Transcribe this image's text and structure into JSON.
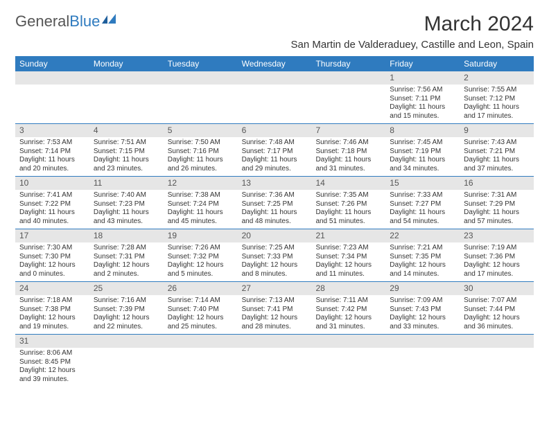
{
  "logo": {
    "general": "General",
    "blue": "Blue"
  },
  "title": "March 2024",
  "subtitle": "San Martin de Valderaduey, Castille and Leon, Spain",
  "colors": {
    "header_bg": "#2f7bbf",
    "header_text": "#ffffff",
    "daynum_bg": "#e6e6e6",
    "week_border": "#2f7bbf"
  },
  "weekdays": [
    "Sunday",
    "Monday",
    "Tuesday",
    "Wednesday",
    "Thursday",
    "Friday",
    "Saturday"
  ],
  "weeks": [
    [
      null,
      null,
      null,
      null,
      null,
      {
        "n": "1",
        "sunrise": "7:56 AM",
        "sunset": "7:11 PM",
        "daylight": "11 hours and 15 minutes."
      },
      {
        "n": "2",
        "sunrise": "7:55 AM",
        "sunset": "7:12 PM",
        "daylight": "11 hours and 17 minutes."
      }
    ],
    [
      {
        "n": "3",
        "sunrise": "7:53 AM",
        "sunset": "7:14 PM",
        "daylight": "11 hours and 20 minutes."
      },
      {
        "n": "4",
        "sunrise": "7:51 AM",
        "sunset": "7:15 PM",
        "daylight": "11 hours and 23 minutes."
      },
      {
        "n": "5",
        "sunrise": "7:50 AM",
        "sunset": "7:16 PM",
        "daylight": "11 hours and 26 minutes."
      },
      {
        "n": "6",
        "sunrise": "7:48 AM",
        "sunset": "7:17 PM",
        "daylight": "11 hours and 29 minutes."
      },
      {
        "n": "7",
        "sunrise": "7:46 AM",
        "sunset": "7:18 PM",
        "daylight": "11 hours and 31 minutes."
      },
      {
        "n": "8",
        "sunrise": "7:45 AM",
        "sunset": "7:19 PM",
        "daylight": "11 hours and 34 minutes."
      },
      {
        "n": "9",
        "sunrise": "7:43 AM",
        "sunset": "7:21 PM",
        "daylight": "11 hours and 37 minutes."
      }
    ],
    [
      {
        "n": "10",
        "sunrise": "7:41 AM",
        "sunset": "7:22 PM",
        "daylight": "11 hours and 40 minutes."
      },
      {
        "n": "11",
        "sunrise": "7:40 AM",
        "sunset": "7:23 PM",
        "daylight": "11 hours and 43 minutes."
      },
      {
        "n": "12",
        "sunrise": "7:38 AM",
        "sunset": "7:24 PM",
        "daylight": "11 hours and 45 minutes."
      },
      {
        "n": "13",
        "sunrise": "7:36 AM",
        "sunset": "7:25 PM",
        "daylight": "11 hours and 48 minutes."
      },
      {
        "n": "14",
        "sunrise": "7:35 AM",
        "sunset": "7:26 PM",
        "daylight": "11 hours and 51 minutes."
      },
      {
        "n": "15",
        "sunrise": "7:33 AM",
        "sunset": "7:27 PM",
        "daylight": "11 hours and 54 minutes."
      },
      {
        "n": "16",
        "sunrise": "7:31 AM",
        "sunset": "7:29 PM",
        "daylight": "11 hours and 57 minutes."
      }
    ],
    [
      {
        "n": "17",
        "sunrise": "7:30 AM",
        "sunset": "7:30 PM",
        "daylight": "12 hours and 0 minutes."
      },
      {
        "n": "18",
        "sunrise": "7:28 AM",
        "sunset": "7:31 PM",
        "daylight": "12 hours and 2 minutes."
      },
      {
        "n": "19",
        "sunrise": "7:26 AM",
        "sunset": "7:32 PM",
        "daylight": "12 hours and 5 minutes."
      },
      {
        "n": "20",
        "sunrise": "7:25 AM",
        "sunset": "7:33 PM",
        "daylight": "12 hours and 8 minutes."
      },
      {
        "n": "21",
        "sunrise": "7:23 AM",
        "sunset": "7:34 PM",
        "daylight": "12 hours and 11 minutes."
      },
      {
        "n": "22",
        "sunrise": "7:21 AM",
        "sunset": "7:35 PM",
        "daylight": "12 hours and 14 minutes."
      },
      {
        "n": "23",
        "sunrise": "7:19 AM",
        "sunset": "7:36 PM",
        "daylight": "12 hours and 17 minutes."
      }
    ],
    [
      {
        "n": "24",
        "sunrise": "7:18 AM",
        "sunset": "7:38 PM",
        "daylight": "12 hours and 19 minutes."
      },
      {
        "n": "25",
        "sunrise": "7:16 AM",
        "sunset": "7:39 PM",
        "daylight": "12 hours and 22 minutes."
      },
      {
        "n": "26",
        "sunrise": "7:14 AM",
        "sunset": "7:40 PM",
        "daylight": "12 hours and 25 minutes."
      },
      {
        "n": "27",
        "sunrise": "7:13 AM",
        "sunset": "7:41 PM",
        "daylight": "12 hours and 28 minutes."
      },
      {
        "n": "28",
        "sunrise": "7:11 AM",
        "sunset": "7:42 PM",
        "daylight": "12 hours and 31 minutes."
      },
      {
        "n": "29",
        "sunrise": "7:09 AM",
        "sunset": "7:43 PM",
        "daylight": "12 hours and 33 minutes."
      },
      {
        "n": "30",
        "sunrise": "7:07 AM",
        "sunset": "7:44 PM",
        "daylight": "12 hours and 36 minutes."
      }
    ],
    [
      {
        "n": "31",
        "sunrise": "8:06 AM",
        "sunset": "8:45 PM",
        "daylight": "12 hours and 39 minutes."
      },
      null,
      null,
      null,
      null,
      null,
      null
    ]
  ]
}
